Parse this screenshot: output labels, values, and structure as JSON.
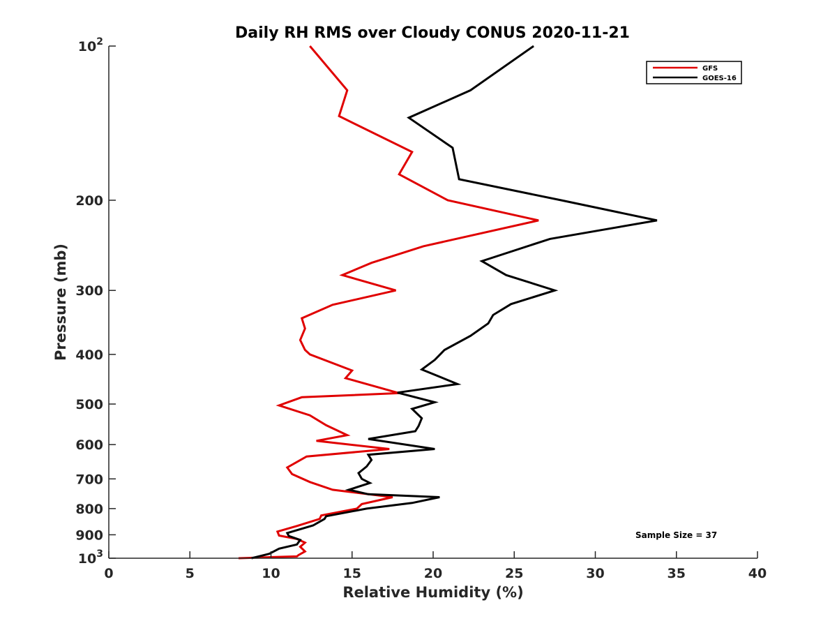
{
  "chart_data": {
    "type": "line",
    "title": "Daily RH RMS over Cloudy CONUS 2020-11-21",
    "xlabel": "Relative Humidity (%)",
    "ylabel": "Pressure (mb)",
    "xlim": [
      0,
      40
    ],
    "ylim": [
      100,
      1000
    ],
    "y_scale": "log",
    "y_reversed": true,
    "grid": false,
    "legend_position": "top-right",
    "x_ticks": [
      "0",
      "5",
      "10",
      "15",
      "20",
      "25",
      "30",
      "35",
      "40"
    ],
    "x_tick_values": [
      0,
      5,
      10,
      15,
      20,
      25,
      30,
      35,
      40
    ],
    "y_ticks": [
      {
        "value": 100,
        "label": "10",
        "sup": "2"
      },
      {
        "value": 200,
        "label": "200",
        "sup": ""
      },
      {
        "value": 300,
        "label": "300",
        "sup": ""
      },
      {
        "value": 400,
        "label": "400",
        "sup": ""
      },
      {
        "value": 500,
        "label": "500",
        "sup": ""
      },
      {
        "value": 600,
        "label": "600",
        "sup": ""
      },
      {
        "value": 700,
        "label": "700",
        "sup": ""
      },
      {
        "value": 800,
        "label": "800",
        "sup": ""
      },
      {
        "value": 900,
        "label": "900",
        "sup": ""
      },
      {
        "value": 1000,
        "label": "10",
        "sup": "3"
      }
    ],
    "annotation": "Sample Size = 37",
    "series": [
      {
        "name": "GFS",
        "color": "#e00000",
        "points": [
          [
            12.4,
            100
          ],
          [
            14.7,
            122
          ],
          [
            14.2,
            137
          ],
          [
            18.7,
            161
          ],
          [
            17.9,
            178
          ],
          [
            20.9,
            200
          ],
          [
            26.5,
            219
          ],
          [
            19.4,
            246
          ],
          [
            16.2,
            265
          ],
          [
            14.4,
            280
          ],
          [
            17.7,
            300
          ],
          [
            13.8,
            320
          ],
          [
            11.9,
            340
          ],
          [
            12.1,
            356
          ],
          [
            11.8,
            375
          ],
          [
            12.1,
            392
          ],
          [
            12.4,
            400
          ],
          [
            15.0,
            430
          ],
          [
            14.6,
            445
          ],
          [
            17.9,
            476
          ],
          [
            11.9,
            485
          ],
          [
            10.5,
            503
          ],
          [
            12.4,
            526
          ],
          [
            13.4,
            550
          ],
          [
            14.7,
            575
          ],
          [
            12.8,
            590
          ],
          [
            17.3,
            612
          ],
          [
            12.2,
            633
          ],
          [
            11.0,
            665
          ],
          [
            11.3,
            685
          ],
          [
            12.4,
            710
          ],
          [
            13.8,
            735
          ],
          [
            17.5,
            760
          ],
          [
            15.6,
            784
          ],
          [
            15.3,
            800
          ],
          [
            13.1,
            825
          ],
          [
            13.0,
            838
          ],
          [
            11.6,
            865
          ],
          [
            10.4,
            887
          ],
          [
            10.5,
            903
          ],
          [
            11.6,
            917
          ],
          [
            12.1,
            932
          ],
          [
            11.8,
            950
          ],
          [
            12.1,
            970
          ],
          [
            11.7,
            986
          ],
          [
            11.6,
            992
          ],
          [
            10.1,
            995
          ],
          [
            8.0,
            1000
          ]
        ]
      },
      {
        "name": "GOES-16",
        "color": "#000000",
        "points": [
          [
            26.2,
            100
          ],
          [
            22.3,
            122
          ],
          [
            18.5,
            138
          ],
          [
            21.2,
            158
          ],
          [
            21.6,
            182
          ],
          [
            27.9,
            200
          ],
          [
            33.8,
            219
          ],
          [
            27.2,
            238
          ],
          [
            23.0,
            263
          ],
          [
            24.5,
            280
          ],
          [
            27.5,
            300
          ],
          [
            24.8,
            319
          ],
          [
            23.7,
            335
          ],
          [
            23.4,
            348
          ],
          [
            22.3,
            368
          ],
          [
            20.7,
            392
          ],
          [
            20.1,
            410
          ],
          [
            19.3,
            428
          ],
          [
            21.5,
            457
          ],
          [
            17.8,
            475
          ],
          [
            20.1,
            496
          ],
          [
            18.7,
            511
          ],
          [
            19.3,
            533
          ],
          [
            19.1,
            552
          ],
          [
            18.9,
            565
          ],
          [
            16.0,
            585
          ],
          [
            20.1,
            612
          ],
          [
            16.0,
            628
          ],
          [
            16.2,
            643
          ],
          [
            15.9,
            662
          ],
          [
            15.4,
            682
          ],
          [
            15.6,
            700
          ],
          [
            16.1,
            713
          ],
          [
            14.8,
            735
          ],
          [
            16.0,
            750
          ],
          [
            20.4,
            760
          ],
          [
            18.7,
            780
          ],
          [
            15.9,
            800
          ],
          [
            13.4,
            828
          ],
          [
            13.3,
            838
          ],
          [
            12.6,
            863
          ],
          [
            11.0,
            893
          ],
          [
            11.1,
            905
          ],
          [
            11.8,
            921
          ],
          [
            11.6,
            940
          ],
          [
            10.5,
            958
          ],
          [
            9.9,
            980
          ],
          [
            8.8,
            1000
          ]
        ]
      }
    ]
  }
}
